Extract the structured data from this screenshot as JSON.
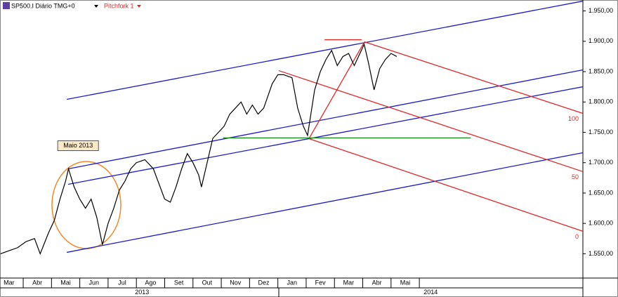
{
  "chart_data": {
    "type": "line",
    "title": "SP500.I Diário TMG+0",
    "subtitle": "Pitchfork 1",
    "price_color": "#000000",
    "x": [
      0.2,
      0.5,
      0.8,
      1.1,
      1.4,
      1.6,
      1.9,
      2.1,
      2.3,
      2.5,
      2.6,
      2.8,
      3.0,
      3.2,
      3.4,
      3.6,
      3.8,
      4.0,
      4.2,
      4.4,
      4.6,
      4.8,
      5.0,
      5.3,
      5.6,
      5.8,
      6.0,
      6.2,
      6.4,
      6.6,
      6.8,
      7.0,
      7.2,
      7.3,
      7.5,
      7.7,
      7.9,
      8.1,
      8.3,
      8.5,
      8.7,
      8.9,
      9.1,
      9.3,
      9.5,
      9.8,
      10.0,
      10.2,
      10.5,
      10.7,
      10.9,
      11.05,
      11.3,
      11.5,
      11.7,
      11.9,
      12.1,
      12.3,
      12.5,
      12.7,
      12.9,
      13.05,
      13.2,
      13.4,
      13.6,
      13.8,
      14.0,
      14.2
    ],
    "values": [
      1550,
      1555,
      1560,
      1570,
      1575,
      1550,
      1585,
      1605,
      1640,
      1670,
      1690,
      1660,
      1640,
      1625,
      1640,
      1610,
      1565,
      1600,
      1625,
      1655,
      1670,
      1690,
      1700,
      1705,
      1690,
      1665,
      1640,
      1635,
      1660,
      1690,
      1715,
      1700,
      1680,
      1660,
      1700,
      1740,
      1750,
      1760,
      1780,
      1790,
      1800,
      1780,
      1795,
      1780,
      1790,
      1830,
      1845,
      1845,
      1840,
      1790,
      1760,
      1745,
      1820,
      1850,
      1870,
      1885,
      1860,
      1875,
      1880,
      1860,
      1880,
      1895,
      1865,
      1820,
      1855,
      1870,
      1880,
      1875
    ],
    "xlim": [
      0.18,
      20.78
    ],
    "xticks": [
      {
        "value": 0.5,
        "label": "Mar"
      },
      {
        "value": 1.5,
        "label": "Abr"
      },
      {
        "value": 2.5,
        "label": "Mai"
      },
      {
        "value": 3.5,
        "label": "Jun"
      },
      {
        "value": 4.5,
        "label": "Jul"
      },
      {
        "value": 5.5,
        "label": "Ago"
      },
      {
        "value": 6.5,
        "label": "Set"
      },
      {
        "value": 7.5,
        "label": "Out"
      },
      {
        "value": 8.5,
        "label": "Nov"
      },
      {
        "value": 9.5,
        "label": "Dez"
      },
      {
        "value": 10.5,
        "label": "Jan"
      },
      {
        "value": 11.5,
        "label": "Fev"
      },
      {
        "value": 12.5,
        "label": "Mar"
      },
      {
        "value": 13.5,
        "label": "Abr"
      },
      {
        "value": 14.5,
        "label": "Mai"
      }
    ],
    "years": [
      {
        "value": 5.2,
        "label": "2013"
      },
      {
        "value": 15.4,
        "label": "2014"
      }
    ],
    "ylim": [
      1510,
      1968
    ],
    "yticks": [
      {
        "value": 1550,
        "label": "1.550,00"
      },
      {
        "value": 1600,
        "label": "1.600,00"
      },
      {
        "value": 1650,
        "label": "1.650,00"
      },
      {
        "value": 1700,
        "label": "1.700,00"
      },
      {
        "value": 1750,
        "label": "1.750,00"
      },
      {
        "value": 1800,
        "label": "1.800,00"
      },
      {
        "value": 1850,
        "label": "1.850,00"
      },
      {
        "value": 1900,
        "label": "1.900,00"
      },
      {
        "value": 1950,
        "label": "1.950,00"
      }
    ],
    "lines": [
      {
        "color": "#1c1cc8",
        "x": [
          2.54,
          20.78
        ],
        "values": [
          1804.3,
          1966.2
        ]
      },
      {
        "color": "#1c1cc8",
        "x": [
          2.59,
          20.78
        ],
        "values": [
          1689.9,
          1852.9
        ]
      },
      {
        "color": "#1c1cc8",
        "x": [
          2.59,
          20.78
        ],
        "values": [
          1664.4,
          1825.1
        ]
      },
      {
        "color": "#1c1cc8",
        "x": [
          2.54,
          20.78
        ],
        "values": [
          1552.3,
          1716.5
        ]
      },
      {
        "color": "#e02828",
        "x": [
          11.1,
          13.06
        ],
        "values": [
          1739.6,
          1899.1
        ]
      },
      {
        "color": "#e02828",
        "x": [
          13.06,
          20.78
        ],
        "values": [
          1899.1,
          1781.2
        ],
        "label": "100"
      },
      {
        "color": "#e02828",
        "x": [
          10.03,
          20.78
        ],
        "values": [
          1851.7,
          1685.3
        ],
        "label": "50"
      },
      {
        "color": "#e02828",
        "x": [
          11.1,
          20.78
        ],
        "values": [
          1739.6,
          1587.0
        ],
        "label": "0"
      },
      {
        "color": "#e02828",
        "x": [
          11.65,
          12.96
        ],
        "values": [
          1902.6,
          1902.6
        ]
      },
      {
        "color": "#1a8a1a",
        "x": [
          8.07,
          16.81
        ],
        "values": [
          1740.8,
          1740.8
        ]
      }
    ],
    "annotation": {
      "text": "Maio 2013",
      "x": 2.94,
      "y": 1728
    }
  }
}
